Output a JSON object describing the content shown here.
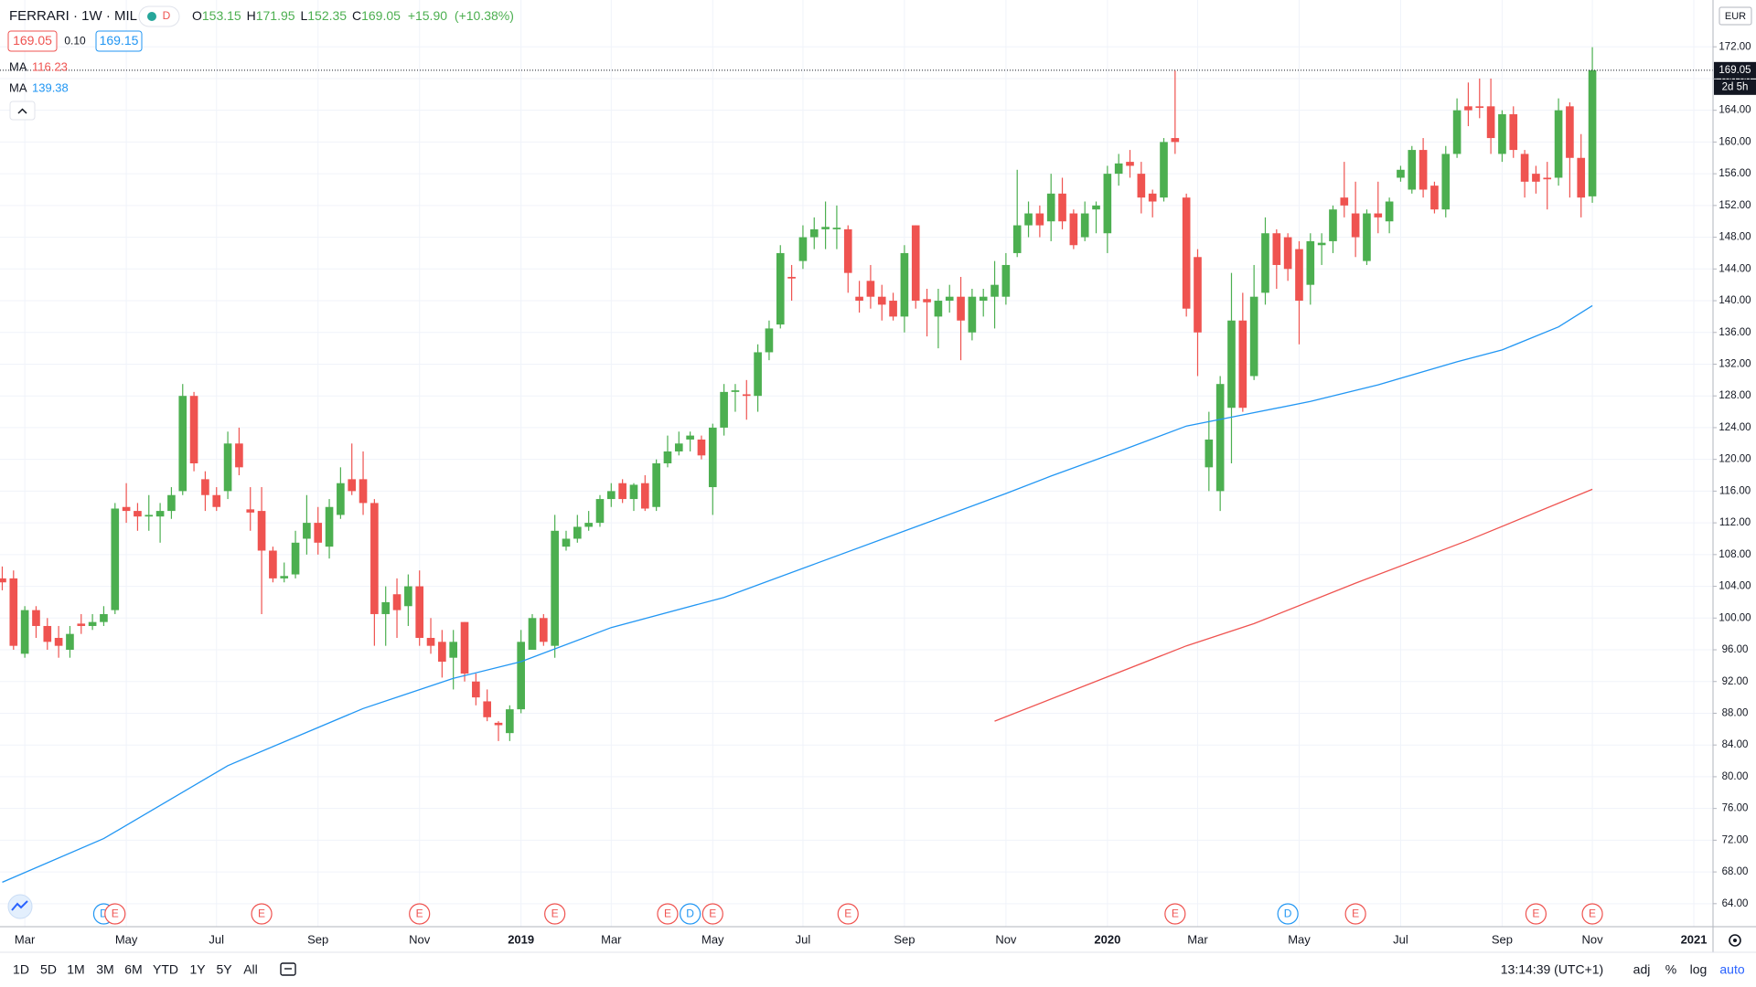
{
  "header": {
    "title": "FERRARI · 1W · MIL",
    "badge": "D",
    "ohlc_labels": [
      "O",
      "H",
      "L",
      "C"
    ],
    "change": "+15.90",
    "change_pct": "(+10.38%)",
    "bid_spread": "0.10",
    "ask": 169.15
  },
  "chart_data": {
    "type": "candlestick",
    "currency": "EUR",
    "countdown": "2d 5h",
    "up_color": "#4caf50",
    "down_color": "#ef5350",
    "open": [
      105,
      105,
      95.5,
      101,
      99,
      97.5,
      96,
      99.3,
      99,
      99.5,
      101,
      114,
      113.5,
      112.8,
      112.8,
      113.5,
      116,
      128,
      117.5,
      115.5,
      116,
      122,
      113.7,
      113.5,
      108.5,
      105,
      105.5,
      110,
      112,
      109,
      113,
      117.5,
      117.5,
      114.5,
      100.5,
      103,
      101.5,
      104,
      97.5,
      97,
      95,
      99.5,
      92,
      89.5,
      86.8,
      85.5,
      88.5,
      96,
      100,
      96.5,
      109,
      110,
      111.5,
      112,
      115,
      117,
      115,
      117,
      114,
      119.5,
      121,
      122.5,
      122.5,
      116.5,
      124,
      128.5,
      128.2,
      128,
      133.5,
      137,
      143,
      145,
      148,
      149,
      149,
      149,
      140.5,
      142.5,
      140.5,
      140,
      138,
      149.5,
      140.2,
      138,
      140,
      140.5,
      136,
      140,
      140.5,
      140.5,
      146,
      149.5,
      151,
      150,
      153.5,
      151,
      148,
      151.5,
      148.5,
      156,
      157.5,
      156,
      153.5,
      153,
      160.5,
      153,
      145.5,
      119,
      116,
      126.5,
      137.5,
      130.5,
      141,
      148.5,
      148,
      146.5,
      142,
      147,
      147.5,
      153,
      151,
      145,
      151,
      150,
      155.5,
      154,
      159,
      154.5,
      151.5,
      158.5,
      164.5,
      164.5,
      164.5,
      158.5,
      163.5,
      158.5,
      156,
      155.5,
      155.5,
      164.5,
      158,
      153.15
    ],
    "high": [
      106.5,
      106,
      101.5,
      101.5,
      100,
      99,
      99,
      100.5,
      100.5,
      101.5,
      114.5,
      117,
      114.5,
      115.5,
      114.5,
      116.5,
      129.5,
      128.5,
      118.5,
      116.5,
      123.5,
      124,
      116.5,
      116.5,
      109,
      107,
      111,
      115.5,
      114,
      115,
      119,
      122,
      121,
      115,
      104,
      105,
      105.5,
      106,
      100,
      98.5,
      98.5,
      99.5,
      93,
      91,
      87,
      89,
      98.5,
      100.5,
      100.5,
      113,
      111,
      113,
      113.5,
      115.5,
      117,
      117.5,
      117,
      118,
      120,
      123,
      123.5,
      123.5,
      123,
      124.5,
      129.5,
      129.5,
      130,
      134.5,
      137.5,
      147,
      144.5,
      149.5,
      150.5,
      152.5,
      152,
      149.5,
      142.5,
      144.5,
      142,
      141,
      147,
      149.5,
      141.5,
      141.5,
      142,
      143,
      141.5,
      141.5,
      145,
      146,
      156.5,
      152.5,
      152,
      156,
      155.5,
      151.5,
      152.5,
      152.5,
      157,
      158.5,
      159,
      157.5,
      154,
      160.5,
      169,
      153.5,
      146.5,
      126,
      130.5,
      143.5,
      141,
      144.5,
      150.5,
      149,
      148.5,
      147.5,
      148.5,
      148.5,
      152,
      157.5,
      155,
      151.5,
      155,
      153,
      157,
      159.5,
      160.5,
      155,
      159.5,
      165.5,
      167.5,
      168,
      168,
      164,
      164.5,
      159,
      157,
      157.5,
      165.5,
      165,
      161,
      171.95
    ],
    "low": [
      103.5,
      96,
      95,
      97.5,
      96,
      95,
      95,
      98,
      98.5,
      99,
      100.5,
      112,
      111,
      111,
      109.5,
      112.5,
      115.5,
      118.5,
      113.5,
      113.5,
      115,
      118,
      111,
      100.5,
      104.5,
      104.5,
      105,
      108,
      108,
      107.5,
      112.5,
      115.5,
      113,
      96.5,
      96.5,
      97.5,
      99,
      96.5,
      95.5,
      92.5,
      91,
      92,
      89,
      87,
      84.5,
      84.5,
      88,
      96,
      96.5,
      95,
      108.5,
      109.5,
      111,
      111.5,
      114,
      114.5,
      113.5,
      113.5,
      113.5,
      119,
      120.5,
      121,
      120,
      113,
      123,
      126,
      125,
      126,
      132.5,
      136.5,
      140,
      144,
      146.5,
      146.5,
      146.5,
      141,
      138.5,
      139,
      137.5,
      137.5,
      136,
      139,
      135.5,
      134,
      138.5,
      132.5,
      135,
      138,
      136.5,
      139.5,
      145.5,
      148,
      148,
      147.5,
      149,
      146.5,
      147.5,
      148.5,
      146,
      154.5,
      155.5,
      151,
      150.5,
      152.5,
      158.5,
      138,
      130.5,
      116,
      113.5,
      119.5,
      126,
      130,
      139.5,
      141.5,
      142.5,
      134.5,
      139.5,
      144.5,
      146,
      150.5,
      145.5,
      144.5,
      148.5,
      148.5,
      155,
      153.5,
      153,
      151,
      150.5,
      158,
      162,
      163,
      158.5,
      157.5,
      158,
      153,
      153.5,
      151.5,
      154.5,
      153,
      150.5,
      152.35
    ],
    "close": [
      104.5,
      96.5,
      101,
      99,
      97,
      96.5,
      98,
      99,
      99.5,
      100.5,
      113.8,
      113.5,
      112.8,
      113,
      113.5,
      115.5,
      128,
      119.5,
      115.5,
      114,
      122,
      119,
      113.3,
      108.5,
      105,
      105.3,
      109.5,
      112,
      109.5,
      114,
      117,
      116,
      114.5,
      100.5,
      102,
      101,
      104,
      97.5,
      96.5,
      94.5,
      97,
      93,
      90,
      87.5,
      86.5,
      88.5,
      97,
      100,
      97,
      111,
      110,
      111.5,
      112,
      115,
      116,
      115,
      116.8,
      113.8,
      119.5,
      121,
      122,
      123,
      120.5,
      124,
      128.5,
      128.7,
      128,
      133.5,
      136.5,
      146,
      142.8,
      148,
      149,
      149.3,
      149.2,
      143.5,
      140,
      140.5,
      139.5,
      138,
      146,
      140,
      139.8,
      140,
      140.5,
      137.5,
      140.5,
      140.5,
      142,
      144.5,
      149.5,
      151,
      149.5,
      153.5,
      150,
      147,
      151,
      152,
      156,
      157.3,
      157,
      153,
      152.5,
      160,
      160,
      139,
      136,
      122.5,
      129.5,
      137.5,
      126.5,
      140.5,
      148.5,
      144.5,
      144,
      140,
      147.5,
      147.3,
      151.5,
      152,
      148,
      151,
      150.5,
      152.5,
      156.5,
      159,
      154,
      151.5,
      158.5,
      164,
      164,
      164.3,
      160.5,
      163.5,
      159,
      155,
      155,
      155.3,
      164,
      158,
      153,
      169.05
    ],
    "series": [
      {
        "name": "MA",
        "color": "#ef5350",
        "x": [
          88,
          105,
          111,
          120,
          130,
          141
        ],
        "values": [
          87.0,
          96.5,
          99.3,
          104.4,
          109.8,
          116.23
        ]
      },
      {
        "name": "MA",
        "color": "#2196f3",
        "x": [
          0,
          9,
          20,
          32,
          40,
          46,
          54,
          64,
          72,
          81,
          89,
          93,
          99,
          105,
          110,
          116,
          122,
          129,
          133,
          138,
          141
        ],
        "values": [
          66.7,
          72.2,
          81.4,
          88.6,
          92.4,
          94.5,
          98.8,
          102.6,
          106.8,
          111.5,
          115.7,
          117.9,
          121.0,
          124.2,
          125.6,
          127.3,
          129.4,
          132.3,
          133.8,
          136.7,
          139.38
        ]
      }
    ],
    "xlim": [
      -0.2,
      151.7
    ],
    "xticks": [
      {
        "value": 2,
        "label": "Mar"
      },
      {
        "value": 11,
        "label": "May"
      },
      {
        "value": 19,
        "label": "Jul"
      },
      {
        "value": 28,
        "label": "Sep"
      },
      {
        "value": 37,
        "label": "Nov"
      },
      {
        "value": 46,
        "label": "2019"
      },
      {
        "value": 54,
        "label": "Mar"
      },
      {
        "value": 63,
        "label": "May"
      },
      {
        "value": 71,
        "label": "Jul"
      },
      {
        "value": 80,
        "label": "Sep"
      },
      {
        "value": 89,
        "label": "Nov"
      },
      {
        "value": 98,
        "label": "2020"
      },
      {
        "value": 106,
        "label": "Mar"
      },
      {
        "value": 115,
        "label": "May"
      },
      {
        "value": 124,
        "label": "Jul"
      },
      {
        "value": 133,
        "label": "Sep"
      },
      {
        "value": 141,
        "label": "Nov"
      },
      {
        "value": 150,
        "label": "2021"
      }
    ],
    "ylim": [
      61.1,
      177.9
    ],
    "yticks": [
      {
        "value": 64,
        "label": "64.00"
      },
      {
        "value": 68,
        "label": "68.00"
      },
      {
        "value": 72,
        "label": "72.00"
      },
      {
        "value": 76,
        "label": "76.00"
      },
      {
        "value": 80,
        "label": "80.00"
      },
      {
        "value": 84,
        "label": "84.00"
      },
      {
        "value": 88,
        "label": "88.00"
      },
      {
        "value": 92,
        "label": "92.00"
      },
      {
        "value": 96,
        "label": "96.00"
      },
      {
        "value": 100,
        "label": "100.00"
      },
      {
        "value": 104,
        "label": "104.00"
      },
      {
        "value": 108,
        "label": "108.00"
      },
      {
        "value": 112,
        "label": "112.00"
      },
      {
        "value": 116,
        "label": "116.00"
      },
      {
        "value": 120,
        "label": "120.00"
      },
      {
        "value": 124,
        "label": "124.00"
      },
      {
        "value": 128,
        "label": "128.00"
      },
      {
        "value": 132,
        "label": "132.00"
      },
      {
        "value": 136,
        "label": "136.00"
      },
      {
        "value": 140,
        "label": "140.00"
      },
      {
        "value": 144,
        "label": "144.00"
      },
      {
        "value": 148,
        "label": "148.00"
      },
      {
        "value": 152,
        "label": "152.00"
      },
      {
        "value": 156,
        "label": "156.00"
      },
      {
        "value": 160,
        "label": "160.00"
      },
      {
        "value": 164,
        "label": "164.00"
      },
      {
        "value": 168,
        "label": "168.00"
      },
      {
        "value": 172,
        "label": "172.00"
      }
    ],
    "grid": true,
    "events": [
      {
        "label": "D",
        "x": 9
      },
      {
        "label": "E",
        "x": 10
      },
      {
        "label": "E",
        "x": 23
      },
      {
        "label": "E",
        "x": 37
      },
      {
        "label": "E",
        "x": 49
      },
      {
        "label": "E",
        "x": 59
      },
      {
        "label": "D",
        "x": 61
      },
      {
        "label": "E",
        "x": 63
      },
      {
        "label": "E",
        "x": 75
      },
      {
        "label": "E",
        "x": 104
      },
      {
        "label": "D",
        "x": 114
      },
      {
        "label": "E",
        "x": 120
      },
      {
        "label": "E",
        "x": 136
      },
      {
        "label": "E",
        "x": 141
      }
    ],
    "event_colors": {
      "E": "#ef5350",
      "D": "#2196f3"
    }
  },
  "toolbar": {
    "ranges": [
      "1D",
      "5D",
      "1M",
      "3M",
      "6M",
      "YTD",
      "1Y",
      "5Y",
      "All"
    ],
    "clock": "13:14:39 (UTC+1)",
    "options": [
      "adj",
      "%",
      "log",
      "auto"
    ]
  }
}
